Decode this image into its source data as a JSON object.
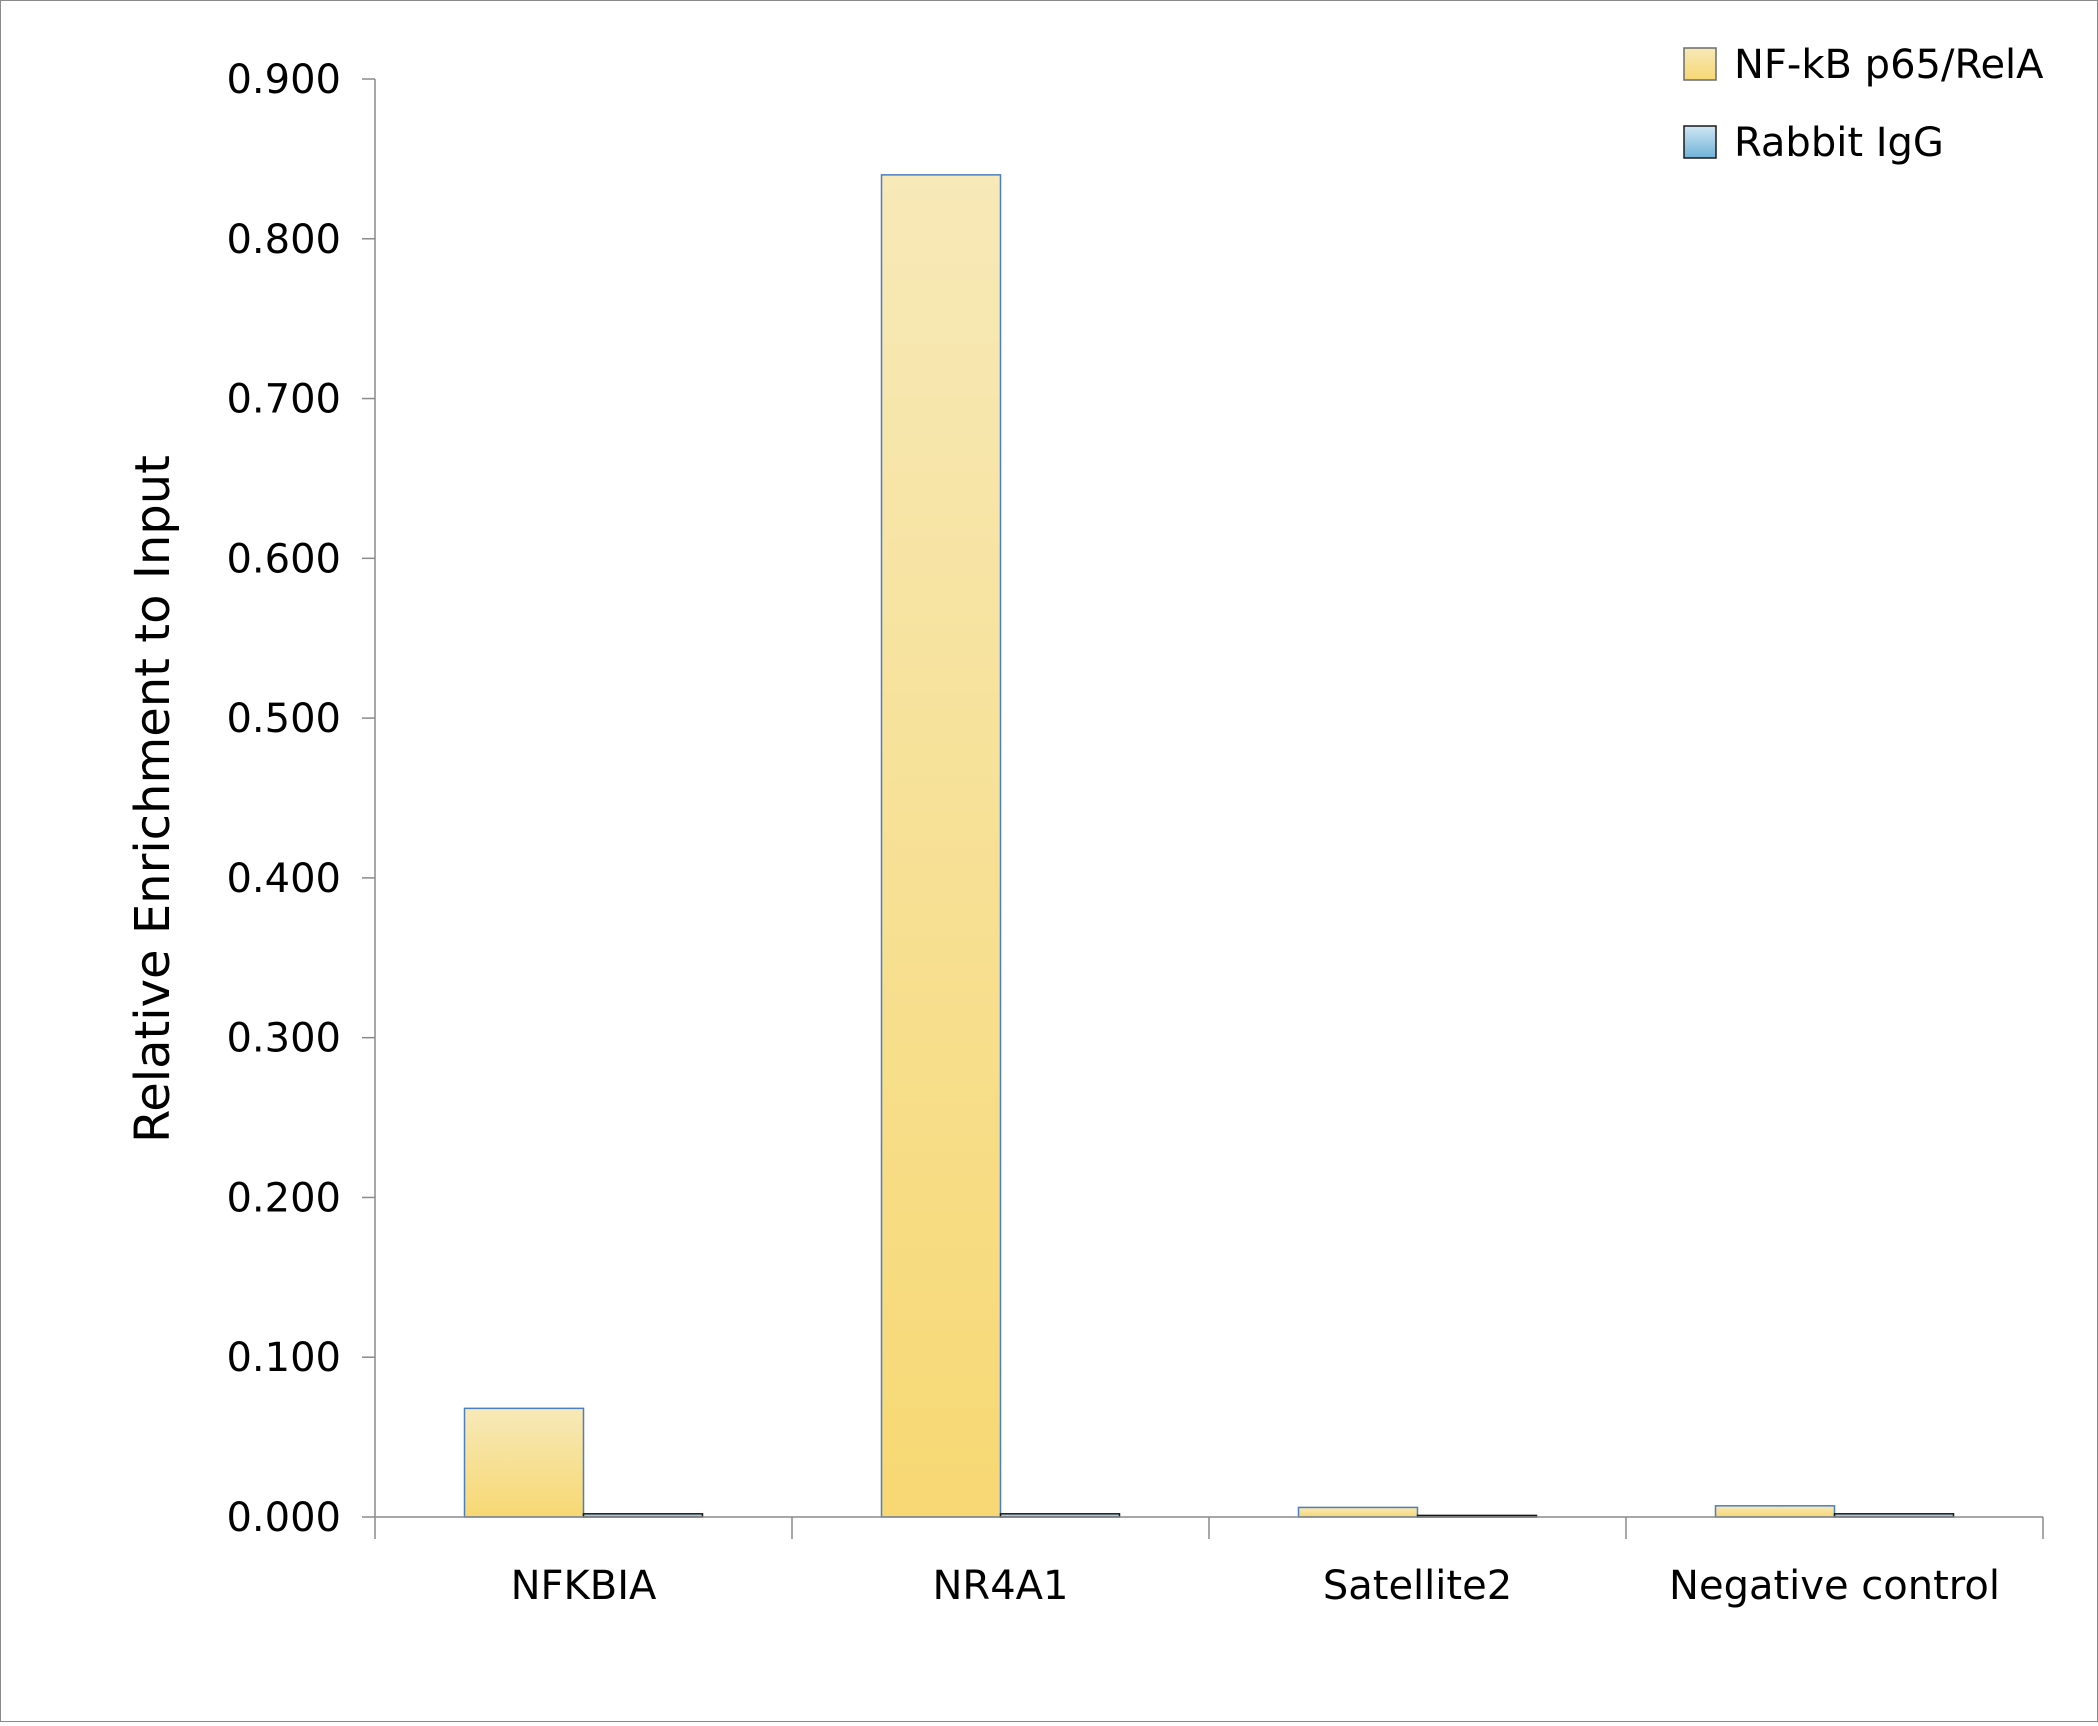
{
  "chart_data": {
    "type": "bar",
    "title": "",
    "xlabel": "",
    "ylabel": "Relative Enrichment to Input",
    "ylim": [
      0,
      0.9
    ],
    "yticks": [
      "0.000",
      "0.100",
      "0.200",
      "0.300",
      "0.400",
      "0.500",
      "0.600",
      "0.700",
      "0.800",
      "0.900"
    ],
    "categories": [
      "NFKBIA",
      "NR4A1",
      "Satellite2",
      "Negative control"
    ],
    "series": [
      {
        "name": "NF-kB p65/RelA",
        "values": [
          0.068,
          0.84,
          0.006,
          0.007
        ],
        "color_top": "#f7e9b8",
        "color_bottom": "#f7d873",
        "stroke": "#4a7fc0"
      },
      {
        "name": "Rabbit IgG",
        "values": [
          0.002,
          0.002,
          0.001,
          0.002
        ],
        "color_top": "#cfe6f3",
        "color_bottom": "#6fb3d8",
        "stroke": "#1a1a1a"
      }
    ],
    "grid": false,
    "legend_position": "top-right"
  }
}
